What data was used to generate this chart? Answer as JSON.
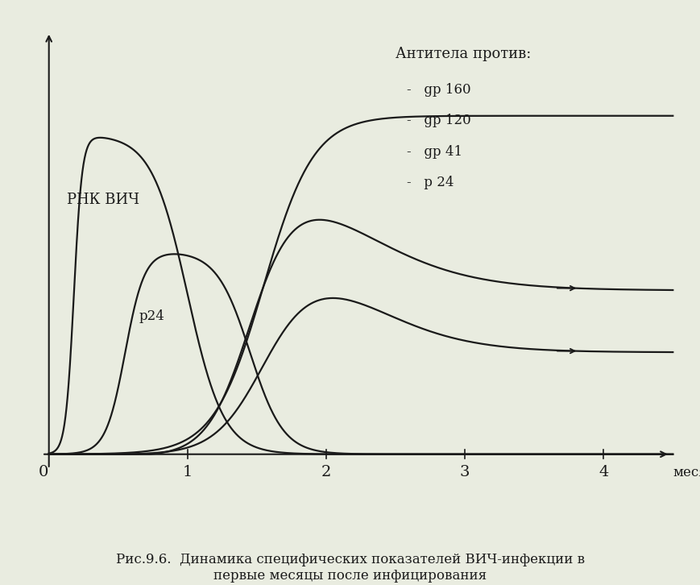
{
  "background_color": "#e9ece0",
  "plot_bg_color": "#e9ece0",
  "line_color": "#1a1a1a",
  "title_text": "Рис.9.6.  Динамика специфических показателей ВИЧ-инфекции в\nпервые месяцы после инфицирования",
  "xlabel": "месяцы",
  "xlim": [
    0,
    4.5
  ],
  "ylim": [
    0,
    1.15
  ],
  "xticks": [
    1,
    2,
    3,
    4
  ],
  "legend_title": "Антитела против:",
  "legend_items": [
    "gp 160",
    "gp 120",
    "gp 41",
    "p 24"
  ],
  "label_rnk": "РНК ВИЧ",
  "label_p24": "p24"
}
